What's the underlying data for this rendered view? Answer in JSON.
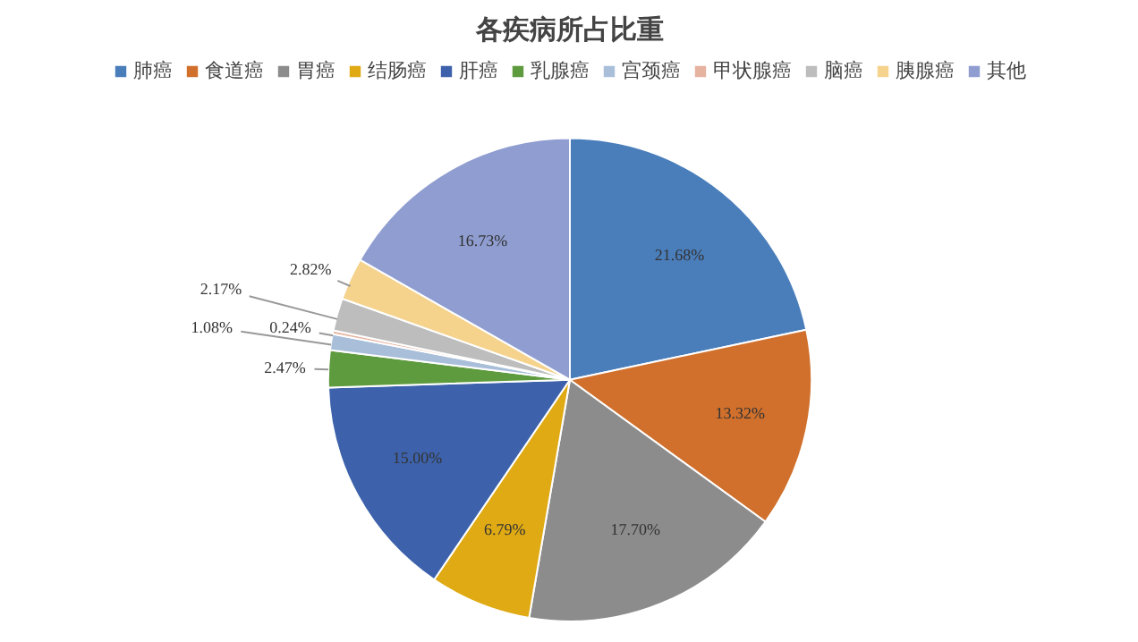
{
  "chart_data": {
    "type": "pie",
    "title": "各疾病所占比重",
    "categories": [
      "肺癌",
      "食道癌",
      "胃癌",
      "结肠癌",
      "肝癌",
      "乳腺癌",
      "宫颈癌",
      "甲状腺癌",
      "脑癌",
      "胰腺癌",
      "其他"
    ],
    "values": [
      21.68,
      13.32,
      17.7,
      6.79,
      15.0,
      2.47,
      1.08,
      0.24,
      2.17,
      2.82,
      16.73
    ],
    "value_labels": [
      "21.68%",
      "13.32%",
      "17.70%",
      "6.79%",
      "15.00%",
      "2.47%",
      "1.08%",
      "0.24%",
      "2.17%",
      "2.82%",
      "16.73%"
    ],
    "colors": [
      "#4a7ebb",
      "#d0702c",
      "#8c8c8c",
      "#e0aa14",
      "#3d62ab",
      "#5e9a3e",
      "#a9bfd9",
      "#e6b3a0",
      "#bdbdbd",
      "#f5d38d",
      "#8f9dd0"
    ],
    "legend": "top"
  }
}
